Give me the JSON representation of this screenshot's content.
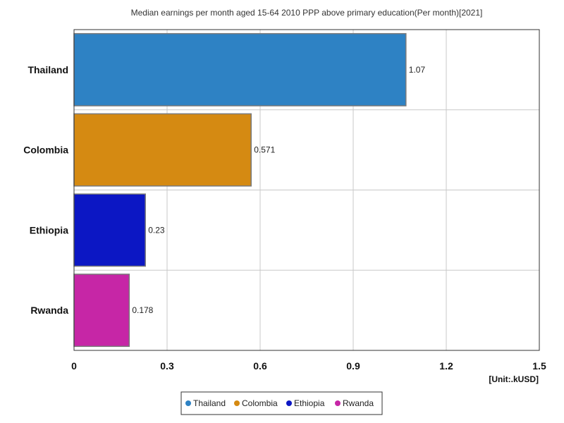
{
  "chart_data": {
    "type": "bar",
    "orientation": "horizontal",
    "title": "Median earnings per month aged 15-64 2010 PPP above primary education(Per month)[2021]",
    "unit": "[Unit:.kUSD]",
    "categories": [
      "Thailand",
      "Colombia",
      "Ethiopia",
      "Rwanda"
    ],
    "values": [
      1.07,
      0.571,
      0.23,
      0.178
    ],
    "value_labels": [
      "1.07",
      "0.571",
      "0.23",
      "0.178"
    ],
    "colors": [
      "#2e82c4",
      "#d58a12",
      "#0c17c4",
      "#c626a6"
    ],
    "xlim": [
      0,
      1.5
    ],
    "ticks": [
      0,
      0.3,
      0.6,
      0.9,
      1.2,
      1.5
    ],
    "tick_labels": [
      "0",
      "0.3",
      "0.6",
      "0.9",
      "1.2",
      "1.5"
    ],
    "grid": true,
    "legend": {
      "placement": "bottom-center",
      "entries": [
        "Thailand",
        "Colombia",
        "Ethiopia",
        "Rwanda"
      ]
    }
  }
}
